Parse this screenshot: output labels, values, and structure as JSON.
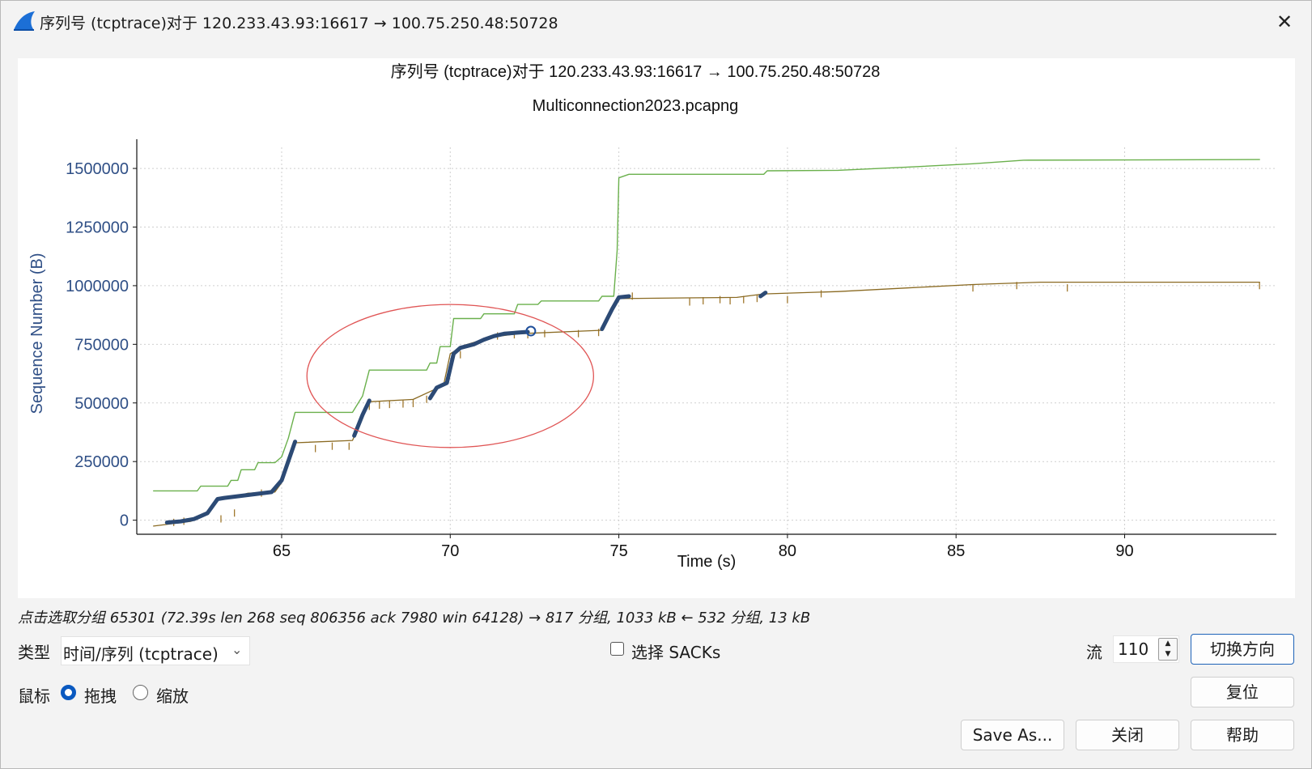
{
  "window": {
    "title": "序列号 (tcptrace)对于 120.233.43.93:16617 → 100.75.250.48:50728",
    "close_glyph": "✕"
  },
  "chart_data": {
    "type": "line",
    "title": "序列号 (tcptrace)对于 120.233.43.93:16617 → 100.75.250.48:50728",
    "subtitle": "Multiconnection2023.pcapng",
    "xlabel": "Time (s)",
    "ylabel": "Sequence Number (B)",
    "xlim": [
      60.8,
      94.5
    ],
    "ylim": [
      -60000,
      1590000
    ],
    "xticks": [
      65,
      70,
      75,
      80,
      85,
      90
    ],
    "yticks": [
      0,
      250000,
      500000,
      750000,
      1000000,
      1250000,
      1500000
    ],
    "grid": true,
    "series": [
      {
        "style": "step",
        "color": "#6ab04c",
        "points": [
          [
            61.2,
            125000
          ],
          [
            62.5,
            125000
          ],
          [
            62.6,
            145000
          ],
          [
            63.4,
            145000
          ],
          [
            63.5,
            170000
          ],
          [
            63.7,
            170000
          ],
          [
            63.8,
            215000
          ],
          [
            64.2,
            215000
          ],
          [
            64.3,
            245000
          ],
          [
            64.8,
            245000
          ],
          [
            65.0,
            270000
          ],
          [
            65.2,
            350000
          ],
          [
            65.4,
            460000
          ],
          [
            67.1,
            460000
          ],
          [
            67.4,
            530000
          ],
          [
            67.6,
            640000
          ],
          [
            69.3,
            640000
          ],
          [
            69.4,
            670000
          ],
          [
            69.6,
            670000
          ],
          [
            69.7,
            740000
          ],
          [
            70.0,
            740000
          ],
          [
            70.1,
            860000
          ],
          [
            70.9,
            860000
          ],
          [
            71.0,
            880000
          ],
          [
            71.9,
            880000
          ],
          [
            72.0,
            920000
          ],
          [
            72.6,
            920000
          ],
          [
            72.7,
            935000
          ],
          [
            74.4,
            935000
          ],
          [
            74.5,
            955000
          ],
          [
            74.85,
            955000
          ],
          [
            74.95,
            1150000
          ],
          [
            75.0,
            1460000
          ],
          [
            75.3,
            1475000
          ],
          [
            79.3,
            1475000
          ],
          [
            79.4,
            1490000
          ],
          [
            81.5,
            1492000
          ],
          [
            83.5,
            1505000
          ],
          [
            85.5,
            1520000
          ],
          [
            87.0,
            1535000
          ],
          [
            94.0,
            1538000
          ]
        ]
      },
      {
        "style": "thin",
        "color": "#8a6a22",
        "points": [
          [
            61.2,
            -25000
          ],
          [
            62.3,
            -5000
          ],
          [
            62.8,
            25000
          ],
          [
            63.1,
            85000
          ],
          [
            63.5,
            95000
          ],
          [
            64.0,
            115000
          ],
          [
            64.8,
            120000
          ],
          [
            65.0,
            160000
          ],
          [
            65.4,
            330000
          ],
          [
            67.1,
            340000
          ],
          [
            67.6,
            505000
          ],
          [
            68.9,
            515000
          ],
          [
            69.5,
            555000
          ],
          [
            69.8,
            575000
          ],
          [
            70.0,
            710000
          ],
          [
            70.4,
            745000
          ],
          [
            71.2,
            780000
          ],
          [
            72.0,
            795000
          ],
          [
            74.5,
            810000
          ],
          [
            75.0,
            945000
          ],
          [
            77.0,
            948000
          ],
          [
            78.5,
            950000
          ],
          [
            79.3,
            965000
          ],
          [
            81.5,
            975000
          ],
          [
            83.5,
            990000
          ],
          [
            85.5,
            1005000
          ],
          [
            87.5,
            1015000
          ],
          [
            94.0,
            1015000
          ]
        ]
      },
      {
        "style": "thick",
        "color": "#2c4a75",
        "points": [
          [
            61.6,
            -10000
          ],
          [
            62.0,
            -5000
          ],
          [
            62.4,
            5000
          ],
          [
            62.8,
            30000
          ],
          [
            63.1,
            90000
          ],
          [
            63.3,
            95000
          ],
          [
            64.7,
            120000
          ],
          [
            65.0,
            170000
          ],
          [
            65.4,
            335000
          ]
        ]
      },
      {
        "style": "thick",
        "color": "#2c4a75",
        "points": [
          [
            67.15,
            360000
          ],
          [
            67.4,
            450000
          ],
          [
            67.6,
            510000
          ]
        ]
      },
      {
        "style": "thick",
        "color": "#2c4a75",
        "points": [
          [
            69.4,
            520000
          ],
          [
            69.6,
            565000
          ],
          [
            69.9,
            585000
          ],
          [
            70.1,
            710000
          ],
          [
            70.3,
            735000
          ],
          [
            70.7,
            750000
          ],
          [
            71.0,
            770000
          ],
          [
            71.3,
            785000
          ],
          [
            71.6,
            795000
          ],
          [
            72.0,
            800000
          ],
          [
            72.3,
            803000
          ]
        ]
      },
      {
        "style": "thick",
        "color": "#2c4a75",
        "points": [
          [
            74.5,
            815000
          ],
          [
            74.8,
            900000
          ],
          [
            75.0,
            950000
          ],
          [
            75.3,
            955000
          ]
        ]
      },
      {
        "style": "thick",
        "color": "#2c4a75",
        "points": [
          [
            79.2,
            955000
          ],
          [
            79.35,
            970000
          ]
        ]
      }
    ],
    "ack_ticks": [
      [
        61.8,
        -25000
      ],
      [
        62.1,
        -20000
      ],
      [
        63.2,
        -10000
      ],
      [
        63.6,
        15000
      ],
      [
        64.4,
        100000
      ],
      [
        66.0,
        290000
      ],
      [
        66.5,
        300000
      ],
      [
        67.0,
        300000
      ],
      [
        67.6,
        470000
      ],
      [
        67.9,
        475000
      ],
      [
        68.2,
        478000
      ],
      [
        68.6,
        480000
      ],
      [
        68.9,
        482000
      ],
      [
        69.3,
        500000
      ],
      [
        70.3,
        690000
      ],
      [
        71.4,
        770000
      ],
      [
        71.9,
        775000
      ],
      [
        72.3,
        775000
      ],
      [
        72.8,
        780000
      ],
      [
        73.8,
        780000
      ],
      [
        74.4,
        785000
      ],
      [
        75.4,
        940000
      ],
      [
        77.1,
        915000
      ],
      [
        77.5,
        920000
      ],
      [
        78.0,
        925000
      ],
      [
        78.3,
        920000
      ],
      [
        78.7,
        925000
      ],
      [
        79.1,
        930000
      ],
      [
        80.0,
        925000
      ],
      [
        81.0,
        950000
      ],
      [
        85.5,
        975000
      ],
      [
        86.8,
        985000
      ],
      [
        88.3,
        975000
      ],
      [
        94.0,
        985000
      ]
    ],
    "highlight_ellipse": {
      "cx": 70.0,
      "cy": 615000,
      "rx_data": 4.25,
      "ry_data": 305000,
      "color": "#e05555"
    },
    "selected_point": {
      "x": 72.39,
      "y": 806356,
      "color": "#1f4f9a"
    }
  },
  "status": {
    "text": "点击选取分组 65301 (72.39s len 268 seq 806356 ack 7980 win 64128) → 817 分组, 1033 kB ← 532 分组, 13 kB"
  },
  "controls": {
    "type_label": "类型",
    "type_value": "时间/序列 (tcptrace)",
    "sacks_label": "选择 SACKs",
    "stream_label": "流",
    "stream_value": "110",
    "mouse_label": "鼠标",
    "drag_label": "拖拽",
    "zoom_label": "缩放",
    "switch_direction": "切换方向",
    "reset": "复位",
    "save_as": "Save As...",
    "close": "关闭",
    "help": "帮助"
  }
}
